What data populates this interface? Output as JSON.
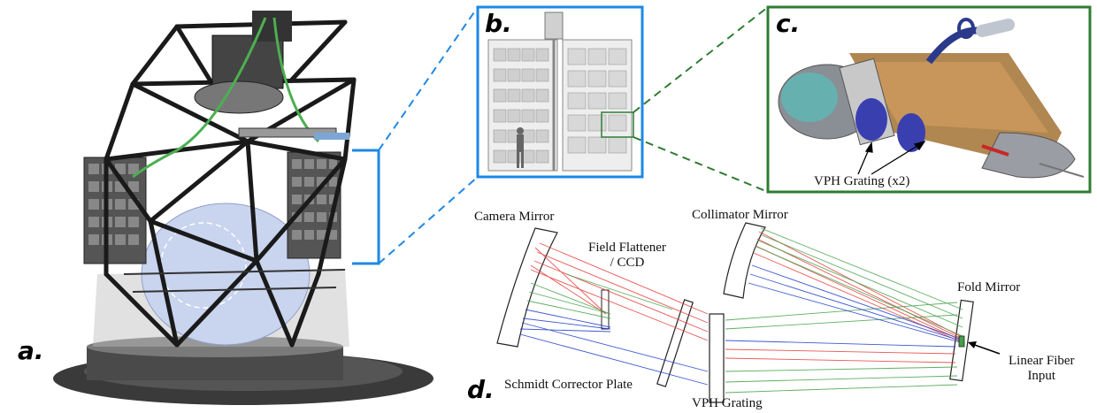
{
  "panels": {
    "a": "a.",
    "b": "b.",
    "c": "c.",
    "d": "d."
  },
  "labels": {
    "vph_grating_x2": "VPH Grating (x2)",
    "camera_mirror": "Camera Mirror",
    "field_flattener_line1": "Field Flattener",
    "field_flattener_line2": "/ CCD",
    "collimator_mirror": "Collimator Mirror",
    "fold_mirror": "Fold Mirror",
    "linear_fiber_line1": "Linear Fiber",
    "linear_fiber_line2": "Input",
    "schmidt_corrector": "Schmidt Corrector Plate",
    "vph_grating": "VPH Grating"
  },
  "colors": {
    "blue_box": "#1e88e5",
    "green_box": "#2e7d32",
    "ray_red": "#e53935",
    "ray_green": "#43a047",
    "ray_blue": "#1e3cc8"
  }
}
